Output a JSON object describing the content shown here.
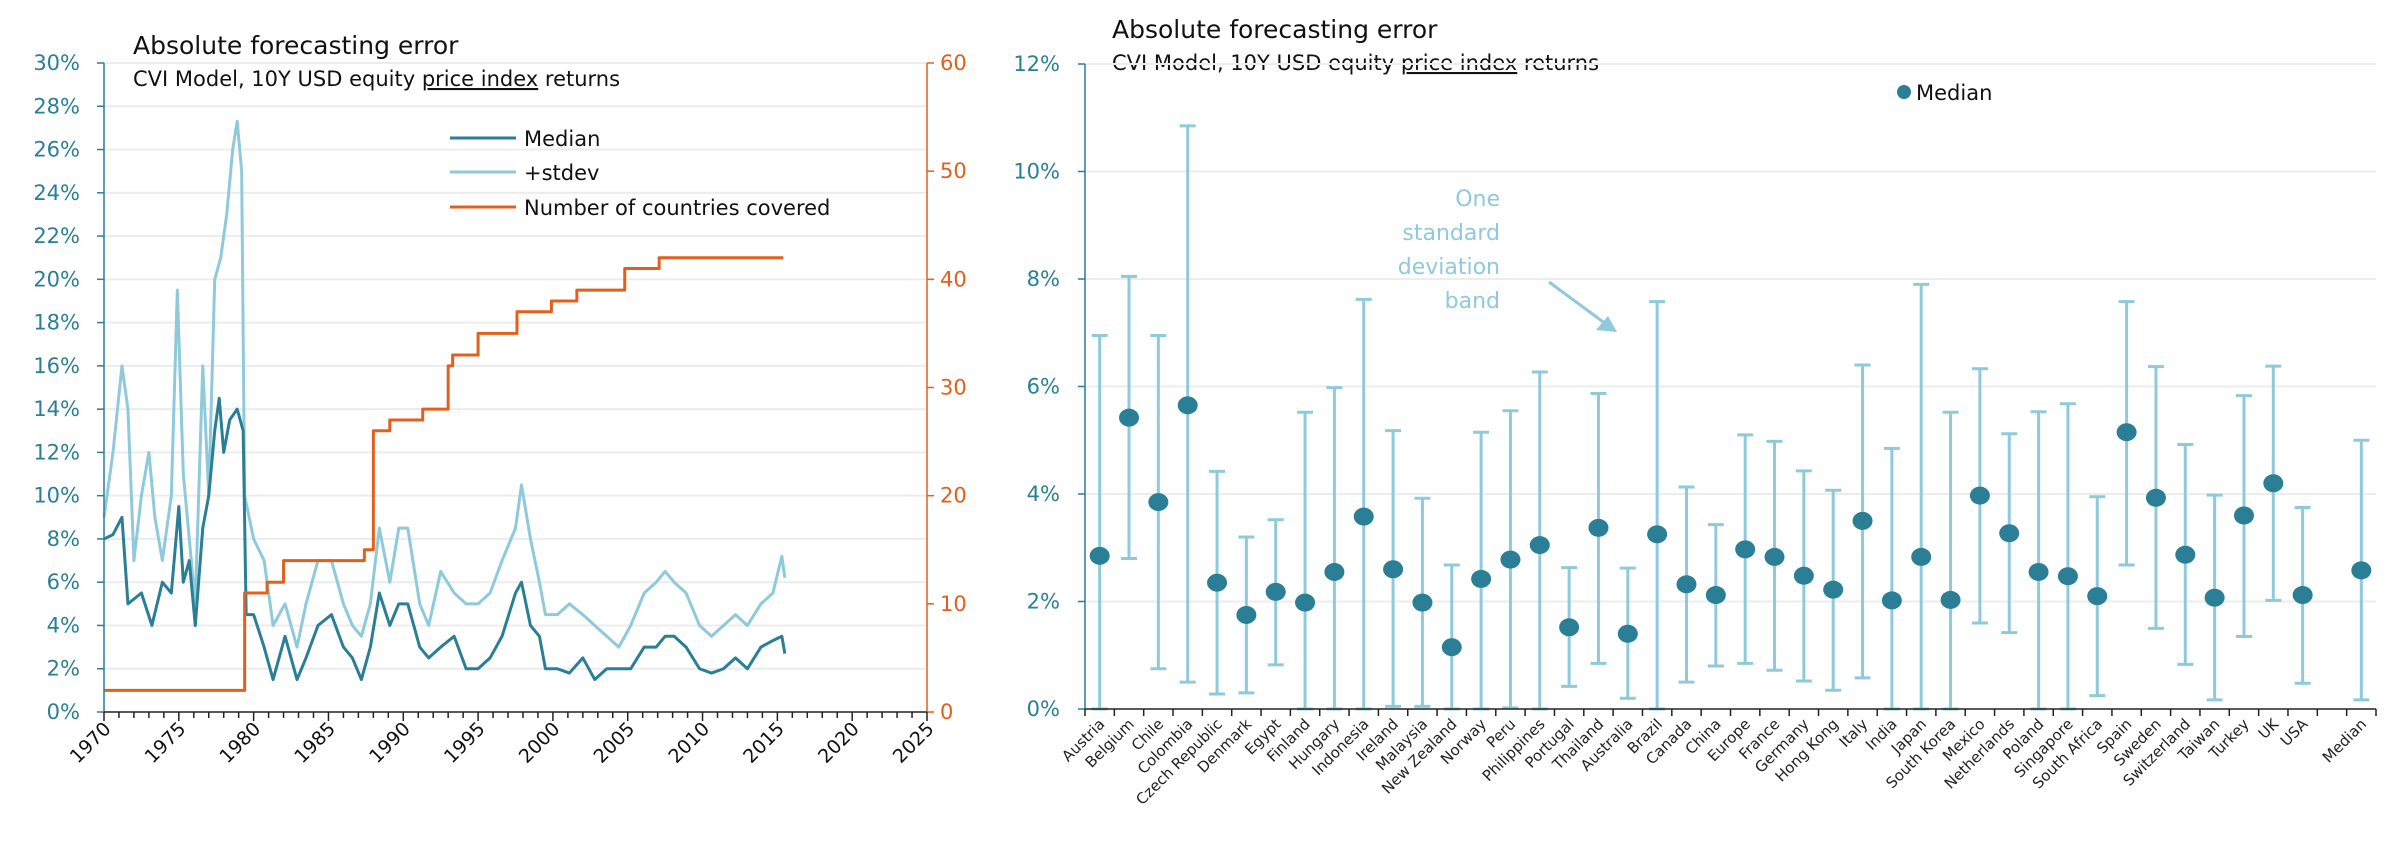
{
  "colors": {
    "median": "#2a7f96",
    "stdev": "#8ecadb",
    "countries": "#e0601c",
    "grid": "#ececec"
  },
  "chart_data": [
    {
      "type": "line",
      "title": "Absolute forecasting error",
      "subtitle_parts": [
        "CVI Model, 10Y USD equity ",
        "price index",
        " returns"
      ],
      "xlim": [
        1970,
        2025
      ],
      "x_ticks": [
        "1970",
        "1975",
        "1980",
        "1985",
        "1990",
        "1995",
        "2000",
        "2005",
        "2010",
        "2015",
        "2020",
        "2025"
      ],
      "ylim": [
        0,
        30
      ],
      "y_ticks": [
        "0%",
        "2%",
        "4%",
        "6%",
        "8%",
        "10%",
        "12%",
        "14%",
        "16%",
        "18%",
        "20%",
        "22%",
        "24%",
        "26%",
        "28%",
        "30%"
      ],
      "y2lim": [
        0,
        60
      ],
      "y2_ticks": [
        "0",
        "10",
        "20",
        "30",
        "40",
        "50",
        "60"
      ],
      "grid": true,
      "legend": [
        "Median",
        "+stdev",
        "Number of countries covered"
      ],
      "legend_position": "top-center",
      "series": [
        {
          "name": "Median",
          "axis": "left",
          "x": [
            1970.0,
            1970.6,
            1971.2,
            1971.6,
            1972.5,
            1973.2,
            1973.9,
            1974.5,
            1975.0,
            1975.3,
            1975.7,
            1976.1,
            1976.6,
            1977.0,
            1977.4,
            1977.7,
            1978.0,
            1978.4,
            1978.9,
            1979.3,
            1979.5,
            1980.0,
            1980.7,
            1981.3,
            1982.1,
            1982.9,
            1983.5,
            1984.3,
            1985.2,
            1986.0,
            1986.6,
            1987.2,
            1987.8,
            1988.4,
            1989.1,
            1989.7,
            1990.3,
            1991.1,
            1991.7,
            1992.5,
            1993.4,
            1994.2,
            1995.0,
            1995.8,
            1996.6,
            1997.5,
            1997.9,
            1998.5,
            1999.1,
            1999.5,
            2000.3,
            2001.1,
            2002.0,
            2002.8,
            2003.6,
            2004.4,
            2005.2,
            2006.1,
            2006.9,
            2007.5,
            2008.1,
            2008.9,
            2009.8,
            2010.6,
            2011.4,
            2012.2,
            2013.0,
            2013.9,
            2014.7,
            2015.3,
            2015.5
          ],
          "y": [
            8,
            8.2,
            9,
            5,
            5.5,
            4,
            6,
            5.5,
            9.5,
            6,
            7,
            4,
            8.5,
            10,
            13,
            14.5,
            12,
            13.5,
            14,
            13,
            4.5,
            4.5,
            3,
            1.5,
            3.5,
            1.5,
            2.5,
            4,
            4.5,
            3,
            2.5,
            1.5,
            3,
            5.5,
            4,
            5,
            5,
            3,
            2.5,
            3,
            3.5,
            2,
            2,
            2.5,
            3.5,
            5.5,
            6,
            4,
            3.5,
            2,
            2,
            1.8,
            2.5,
            1.5,
            2,
            2,
            2,
            3,
            3,
            3.5,
            3.5,
            3,
            2,
            1.8,
            2,
            2.5,
            2,
            3,
            3.3,
            3.5,
            2.7
          ]
        },
        {
          "name": "+stdev",
          "axis": "left",
          "x": [
            1970.0,
            1970.6,
            1971.2,
            1971.6,
            1972.0,
            1972.5,
            1973.0,
            1973.4,
            1973.9,
            1974.5,
            1974.9,
            1975.3,
            1975.7,
            1976.1,
            1976.6,
            1977.0,
            1977.4,
            1977.8,
            1978.2,
            1978.6,
            1978.9,
            1979.2,
            1979.4,
            1980.0,
            1980.7,
            1981.3,
            1982.1,
            1982.9,
            1983.5,
            1984.3,
            1985.2,
            1986.0,
            1986.6,
            1987.2,
            1987.8,
            1988.4,
            1989.1,
            1989.7,
            1990.3,
            1991.1,
            1991.7,
            1992.5,
            1993.4,
            1994.2,
            1995.0,
            1995.8,
            1996.6,
            1997.5,
            1997.9,
            1998.5,
            1999.1,
            1999.5,
            2000.3,
            2001.1,
            2002.0,
            2002.8,
            2003.6,
            2004.4,
            2005.2,
            2006.1,
            2006.9,
            2007.5,
            2008.1,
            2008.9,
            2009.8,
            2010.6,
            2011.4,
            2012.2,
            2013.0,
            2013.9,
            2014.7,
            2015.3,
            2015.5
          ],
          "y": [
            9,
            12,
            16,
            14,
            7,
            10,
            12,
            9,
            7,
            10,
            19.5,
            11,
            8,
            5,
            16,
            10,
            20,
            21,
            23,
            26,
            27.3,
            25,
            10,
            8,
            7,
            4,
            5,
            3,
            5,
            7,
            7,
            5,
            4,
            3.5,
            5,
            8.5,
            6,
            8.5,
            8.5,
            5,
            4,
            6.5,
            5.5,
            5,
            5,
            5.5,
            7,
            8.5,
            10.5,
            8,
            6,
            4.5,
            4.5,
            5,
            4.5,
            4,
            3.5,
            3,
            4,
            5.5,
            6,
            6.5,
            6,
            5.5,
            4,
            3.5,
            4,
            4.5,
            4,
            5,
            5.5,
            7.2,
            6.2
          ]
        },
        {
          "name": "Number of countries covered",
          "axis": "right",
          "step": true,
          "x": [
            1970.0,
            1979.4,
            1980.9,
            1982.0,
            1987.4,
            1988.0,
            1989.1,
            1991.3,
            1993.0,
            1993.3,
            1995.0,
            1997.6,
            1999.9,
            2001.6,
            2004.8,
            2007.1,
            2015.4
          ],
          "y": [
            2,
            11,
            12,
            14,
            15,
            26,
            27,
            28,
            32,
            33,
            35,
            37,
            38,
            39,
            41,
            42,
            42
          ]
        }
      ]
    },
    {
      "type": "scatter",
      "title": "Absolute forecasting error",
      "subtitle_parts": [
        "CVI Model, 10Y USD equity ",
        "price index",
        " returns"
      ],
      "ylim": [
        0,
        12
      ],
      "y_ticks": [
        "0%",
        "2%",
        "4%",
        "6%",
        "8%",
        "10%",
        "12%"
      ],
      "grid": true,
      "legend": [
        "Median"
      ],
      "legend_position": "top-center",
      "annotation": [
        "One",
        "standard",
        "deviation",
        "band"
      ],
      "categories": [
        "Austria",
        "Belgium",
        "Chile",
        "Colombia",
        "Czech Republic",
        "Denmark",
        "Egypt",
        "Finland",
        "Hungary",
        "Indonesia",
        "Ireland",
        "Malaysia",
        "New Zealand",
        "Norway",
        "Peru",
        "Philippines",
        "Portugal",
        "Thailand",
        "Australia",
        "Brazil",
        "Canada",
        "China",
        "Europe",
        "France",
        "Germany",
        "Hong Kong",
        "Italy",
        "India",
        "Japan",
        "South Korea",
        "Mexico",
        "Netherlands",
        "Poland",
        "Singapore",
        "South Africa",
        "Spain",
        "Sweden",
        "Switzerland",
        "Taiwan",
        "Turkey",
        "UK",
        "USA",
        "",
        "Median"
      ],
      "median": [
        2.85,
        5.42,
        3.85,
        5.65,
        2.35,
        1.75,
        2.18,
        1.98,
        2.55,
        3.58,
        2.6,
        1.98,
        1.15,
        2.42,
        2.78,
        3.05,
        1.52,
        3.37,
        1.4,
        3.25,
        2.32,
        2.12,
        2.97,
        2.83,
        2.48,
        2.22,
        3.5,
        2.02,
        2.83,
        2.03,
        3.97,
        3.27,
        2.55,
        2.47,
        2.1,
        5.15,
        3.93,
        2.87,
        2.07,
        3.6,
        4.2,
        2.12,
        null,
        2.58
      ],
      "low": [
        0,
        2.8,
        0.75,
        0.5,
        0.28,
        0.3,
        0.82,
        0,
        0,
        0,
        0.05,
        0.05,
        0,
        0,
        0.02,
        0,
        0.42,
        0.85,
        0.2,
        0,
        0.5,
        0.8,
        0.85,
        0.72,
        0.52,
        0.35,
        0.58,
        0,
        0,
        0,
        1.6,
        1.42,
        0,
        0,
        0.25,
        2.68,
        1.5,
        0.83,
        0.17,
        1.35,
        2.02,
        0.48,
        null,
        0.17
      ],
      "high": [
        6.95,
        8.05,
        6.95,
        10.85,
        4.42,
        3.2,
        3.52,
        5.52,
        5.98,
        7.62,
        5.18,
        3.92,
        2.68,
        5.15,
        5.55,
        6.27,
        2.63,
        5.87,
        2.62,
        7.58,
        4.13,
        3.43,
        5.1,
        4.98,
        4.43,
        4.07,
        6.4,
        4.85,
        7.9,
        5.52,
        6.33,
        5.12,
        5.53,
        5.68,
        3.95,
        7.58,
        6.37,
        4.92,
        3.98,
        5.83,
        6.38,
        3.75,
        null,
        5.0
      ]
    }
  ]
}
